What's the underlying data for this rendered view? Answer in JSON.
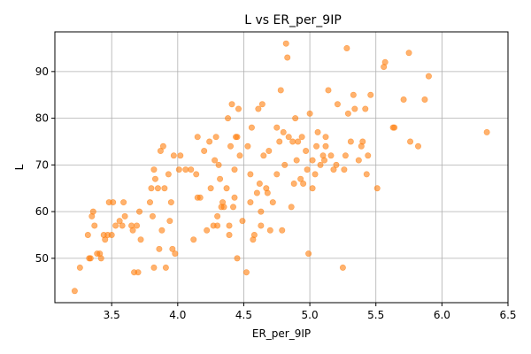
{
  "chart_data": {
    "type": "scatter",
    "title": "L vs ER_per_9IP",
    "xlabel": "ER_per_9IP",
    "ylabel": "L",
    "xlim": [
      3.07,
      6.5
    ],
    "ylim": [
      40.5,
      98.5
    ],
    "xticks": [
      "3.5",
      "4.0",
      "4.5",
      "5.0",
      "5.5",
      "6.0",
      "6.5"
    ],
    "yticks": [
      "50",
      "60",
      "70",
      "80",
      "90"
    ],
    "grid": true,
    "marker_color": "#ff7f0e",
    "marker_alpha": 0.6,
    "points": [
      [
        3.22,
        43
      ],
      [
        3.26,
        48
      ],
      [
        3.32,
        55
      ],
      [
        3.33,
        50
      ],
      [
        3.34,
        50
      ],
      [
        3.35,
        59
      ],
      [
        3.36,
        60
      ],
      [
        3.37,
        57
      ],
      [
        3.39,
        51
      ],
      [
        3.41,
        51
      ],
      [
        3.42,
        50
      ],
      [
        3.44,
        55
      ],
      [
        3.45,
        54
      ],
      [
        3.47,
        55
      ],
      [
        3.48,
        62
      ],
      [
        3.5,
        55
      ],
      [
        3.51,
        62
      ],
      [
        3.53,
        57
      ],
      [
        3.56,
        58
      ],
      [
        3.58,
        57
      ],
      [
        3.59,
        62
      ],
      [
        3.6,
        59
      ],
      [
        3.65,
        57
      ],
      [
        3.66,
        56
      ],
      [
        3.67,
        47
      ],
      [
        3.69,
        57
      ],
      [
        3.7,
        47
      ],
      [
        3.71,
        60
      ],
      [
        3.72,
        54
      ],
      [
        3.79,
        62
      ],
      [
        3.8,
        65
      ],
      [
        3.81,
        59
      ],
      [
        3.82,
        48
      ],
      [
        3.82,
        69
      ],
      [
        3.83,
        67
      ],
      [
        3.85,
        65
      ],
      [
        3.86,
        52
      ],
      [
        3.87,
        73
      ],
      [
        3.88,
        56
      ],
      [
        3.89,
        74
      ],
      [
        3.9,
        65
      ],
      [
        3.91,
        48
      ],
      [
        3.93,
        68
      ],
      [
        3.94,
        58
      ],
      [
        3.95,
        62
      ],
      [
        3.96,
        52
      ],
      [
        3.97,
        72
      ],
      [
        3.98,
        51
      ],
      [
        4.01,
        69
      ],
      [
        4.02,
        72
      ],
      [
        4.06,
        69
      ],
      [
        4.1,
        69
      ],
      [
        4.12,
        54
      ],
      [
        4.14,
        68
      ],
      [
        4.15,
        76
      ],
      [
        4.15,
        63
      ],
      [
        4.17,
        63
      ],
      [
        4.2,
        73
      ],
      [
        4.22,
        56
      ],
      [
        4.24,
        75
      ],
      [
        4.25,
        65
      ],
      [
        4.27,
        57
      ],
      [
        4.28,
        71
      ],
      [
        4.29,
        76
      ],
      [
        4.3,
        57
      ],
      [
        4.3,
        59
      ],
      [
        4.31,
        70
      ],
      [
        4.32,
        67
      ],
      [
        4.33,
        61
      ],
      [
        4.34,
        62
      ],
      [
        4.35,
        61
      ],
      [
        4.37,
        65
      ],
      [
        4.38,
        80
      ],
      [
        4.39,
        57
      ],
      [
        4.39,
        55
      ],
      [
        4.4,
        74
      ],
      [
        4.41,
        83
      ],
      [
        4.42,
        61
      ],
      [
        4.43,
        63
      ],
      [
        4.43,
        69
      ],
      [
        4.44,
        76
      ],
      [
        4.45,
        76
      ],
      [
        4.45,
        50
      ],
      [
        4.46,
        82
      ],
      [
        4.47,
        72
      ],
      [
        4.49,
        58
      ],
      [
        4.52,
        47
      ],
      [
        4.53,
        74
      ],
      [
        4.55,
        68
      ],
      [
        4.55,
        62
      ],
      [
        4.56,
        78
      ],
      [
        4.57,
        54
      ],
      [
        4.58,
        55
      ],
      [
        4.6,
        64
      ],
      [
        4.61,
        82
      ],
      [
        4.62,
        66
      ],
      [
        4.63,
        60
      ],
      [
        4.63,
        57
      ],
      [
        4.64,
        83
      ],
      [
        4.65,
        72
      ],
      [
        4.67,
        65
      ],
      [
        4.68,
        64
      ],
      [
        4.69,
        73
      ],
      [
        4.7,
        56
      ],
      [
        4.72,
        62
      ],
      [
        4.75,
        68
      ],
      [
        4.75,
        78
      ],
      [
        4.77,
        75
      ],
      [
        4.78,
        86
      ],
      [
        4.79,
        56
      ],
      [
        4.8,
        77
      ],
      [
        4.81,
        70
      ],
      [
        4.82,
        96
      ],
      [
        4.83,
        93
      ],
      [
        4.84,
        76
      ],
      [
        4.86,
        61
      ],
      [
        4.87,
        75
      ],
      [
        4.88,
        66
      ],
      [
        4.89,
        80
      ],
      [
        4.9,
        71
      ],
      [
        4.91,
        75
      ],
      [
        4.93,
        67
      ],
      [
        4.94,
        76
      ],
      [
        4.95,
        66
      ],
      [
        4.97,
        73
      ],
      [
        4.98,
        69
      ],
      [
        4.99,
        51
      ],
      [
        5.0,
        81
      ],
      [
        5.02,
        65
      ],
      [
        5.02,
        71
      ],
      [
        5.04,
        68
      ],
      [
        5.05,
        74
      ],
      [
        5.06,
        77
      ],
      [
        5.08,
        70
      ],
      [
        5.1,
        72
      ],
      [
        5.11,
        71
      ],
      [
        5.12,
        74
      ],
      [
        5.12,
        76
      ],
      [
        5.14,
        86
      ],
      [
        5.16,
        72
      ],
      [
        5.18,
        69
      ],
      [
        5.2,
        70
      ],
      [
        5.21,
        83
      ],
      [
        5.25,
        48
      ],
      [
        5.26,
        69
      ],
      [
        5.27,
        72
      ],
      [
        5.28,
        95
      ],
      [
        5.29,
        81
      ],
      [
        5.31,
        75
      ],
      [
        5.33,
        85
      ],
      [
        5.34,
        82
      ],
      [
        5.37,
        71
      ],
      [
        5.39,
        74
      ],
      [
        5.4,
        75
      ],
      [
        5.42,
        82
      ],
      [
        5.43,
        68
      ],
      [
        5.44,
        72
      ],
      [
        5.46,
        85
      ],
      [
        5.51,
        65
      ],
      [
        5.56,
        91
      ],
      [
        5.57,
        92
      ],
      [
        5.63,
        78
      ],
      [
        5.64,
        78
      ],
      [
        5.71,
        84
      ],
      [
        5.75,
        94
      ],
      [
        5.76,
        75
      ],
      [
        5.82,
        74
      ],
      [
        5.87,
        84
      ],
      [
        5.9,
        89
      ],
      [
        6.34,
        77
      ]
    ]
  }
}
